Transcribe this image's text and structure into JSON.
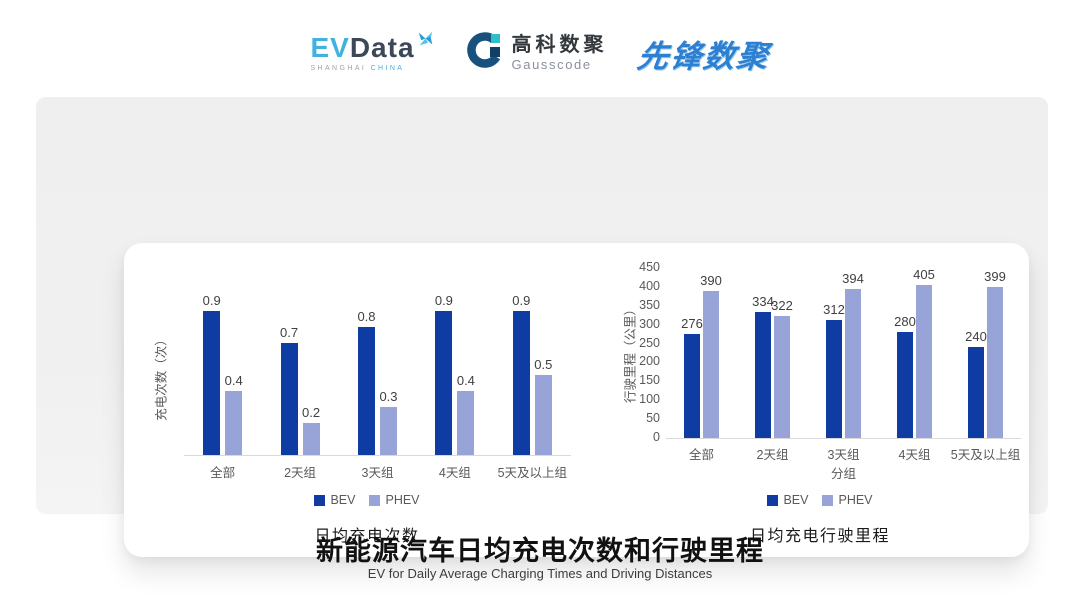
{
  "header": {
    "evdata": {
      "ev": "EV",
      "data": "Data",
      "sub_left": "SHANGHAI",
      "sub_right": "CHINA"
    },
    "gausscode": {
      "cn": "高科数聚",
      "en": "Gausscode"
    },
    "pioneer": {
      "text": "先锋数聚"
    }
  },
  "colors": {
    "bev": "#0E3CA3",
    "phev": "#98A3D8",
    "axis_line": "#D9D9D9",
    "tick_text": "#595959",
    "value_text": "#404040",
    "panel_bg": "#EFEFEF",
    "card_bg": "#FFFFFF",
    "evdata_blue": "#41B1E0",
    "evdata_dark": "#3C4858",
    "gauss_navy": "#17527F",
    "gauss_teal": "#2FBFC9",
    "pioneer_blue": "#2D7FD2"
  },
  "chart_data": [
    {
      "type": "bar",
      "title": "日均充电次数",
      "ylabel": "充电次数（次）",
      "xlabel": "",
      "categories": [
        "全部",
        "2天组",
        "3天组",
        "4天组",
        "5天及以上组"
      ],
      "series": [
        {
          "name": "BEV",
          "color_key": "bev",
          "values": [
            0.9,
            0.7,
            0.8,
            0.9,
            0.9
          ]
        },
        {
          "name": "PHEV",
          "color_key": "phev",
          "values": [
            0.4,
            0.2,
            0.3,
            0.4,
            0.5
          ]
        }
      ],
      "ylim": [
        0,
        1
      ],
      "yticks": [],
      "value_labels": true,
      "grid": false,
      "legend_position": "bottom"
    },
    {
      "type": "bar",
      "title": "日均充电行驶里程",
      "ylabel": "行驶里程（公里）",
      "xlabel": "分组",
      "categories": [
        "全部",
        "2天组",
        "3天组",
        "4天组",
        "5天及以上组"
      ],
      "series": [
        {
          "name": "BEV",
          "color_key": "bev",
          "values": [
            276,
            334,
            312,
            280,
            240
          ]
        },
        {
          "name": "PHEV",
          "color_key": "phev",
          "values": [
            390,
            322,
            394,
            405,
            399
          ]
        }
      ],
      "ylim": [
        0,
        450
      ],
      "yticks": [
        0,
        50,
        100,
        150,
        200,
        250,
        300,
        350,
        400,
        450
      ],
      "value_labels": true,
      "grid": false,
      "legend_position": "bottom"
    }
  ],
  "footer": {
    "title": "新能源汽车日均充电次数和行驶里程",
    "subtitle": "EV for Daily Average Charging Times and Driving Distances"
  }
}
